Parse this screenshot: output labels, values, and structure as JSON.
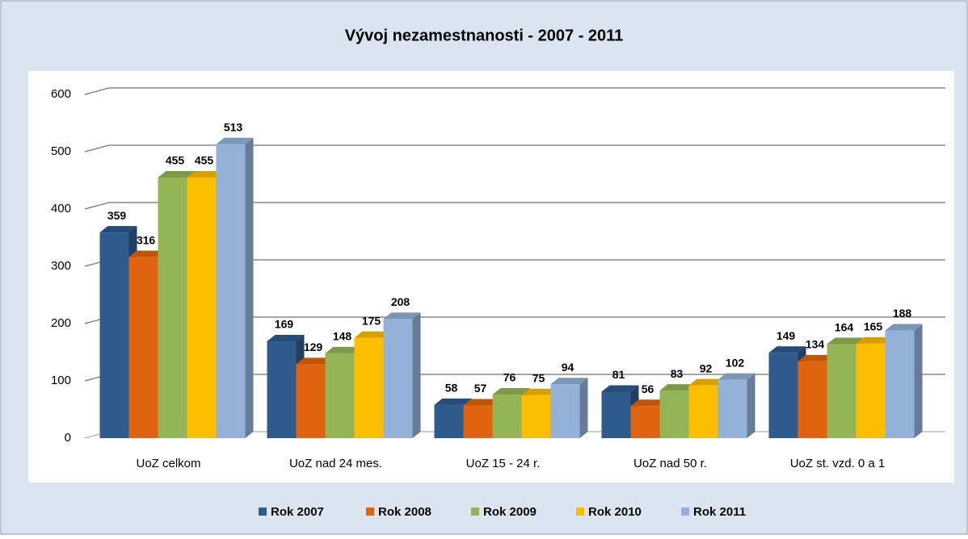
{
  "chart_data": {
    "type": "bar",
    "title": "Vývoj nezamestnanosti - 2007 - 2011",
    "categories": [
      "UoZ  celkom",
      "UoZ nad 24 mes.",
      "UoZ 15 - 24 r.",
      "UoZ nad 50 r.",
      "UoZ st. vzd. 0 a 1"
    ],
    "series": [
      {
        "name": "Rok 2007",
        "color": "#2f5a8c",
        "values": [
          359,
          169,
          58,
          81,
          149
        ]
      },
      {
        "name": "Rok 2008",
        "color": "#e0640f",
        "values": [
          316,
          129,
          57,
          56,
          134
        ]
      },
      {
        "name": "Rok 2009",
        "color": "#94b555",
        "values": [
          455,
          148,
          76,
          83,
          164
        ]
      },
      {
        "name": "Rok 2010",
        "color": "#fbbe00",
        "values": [
          455,
          175,
          75,
          92,
          165
        ]
      },
      {
        "name": "Rok 2011",
        "color": "#93b1d9",
        "values": [
          513,
          208,
          94,
          102,
          188
        ]
      }
    ],
    "ylim": [
      0,
      600
    ],
    "yticks": [
      0,
      100,
      200,
      300,
      400,
      500,
      600
    ],
    "grid": true,
    "legend": "bottom"
  }
}
